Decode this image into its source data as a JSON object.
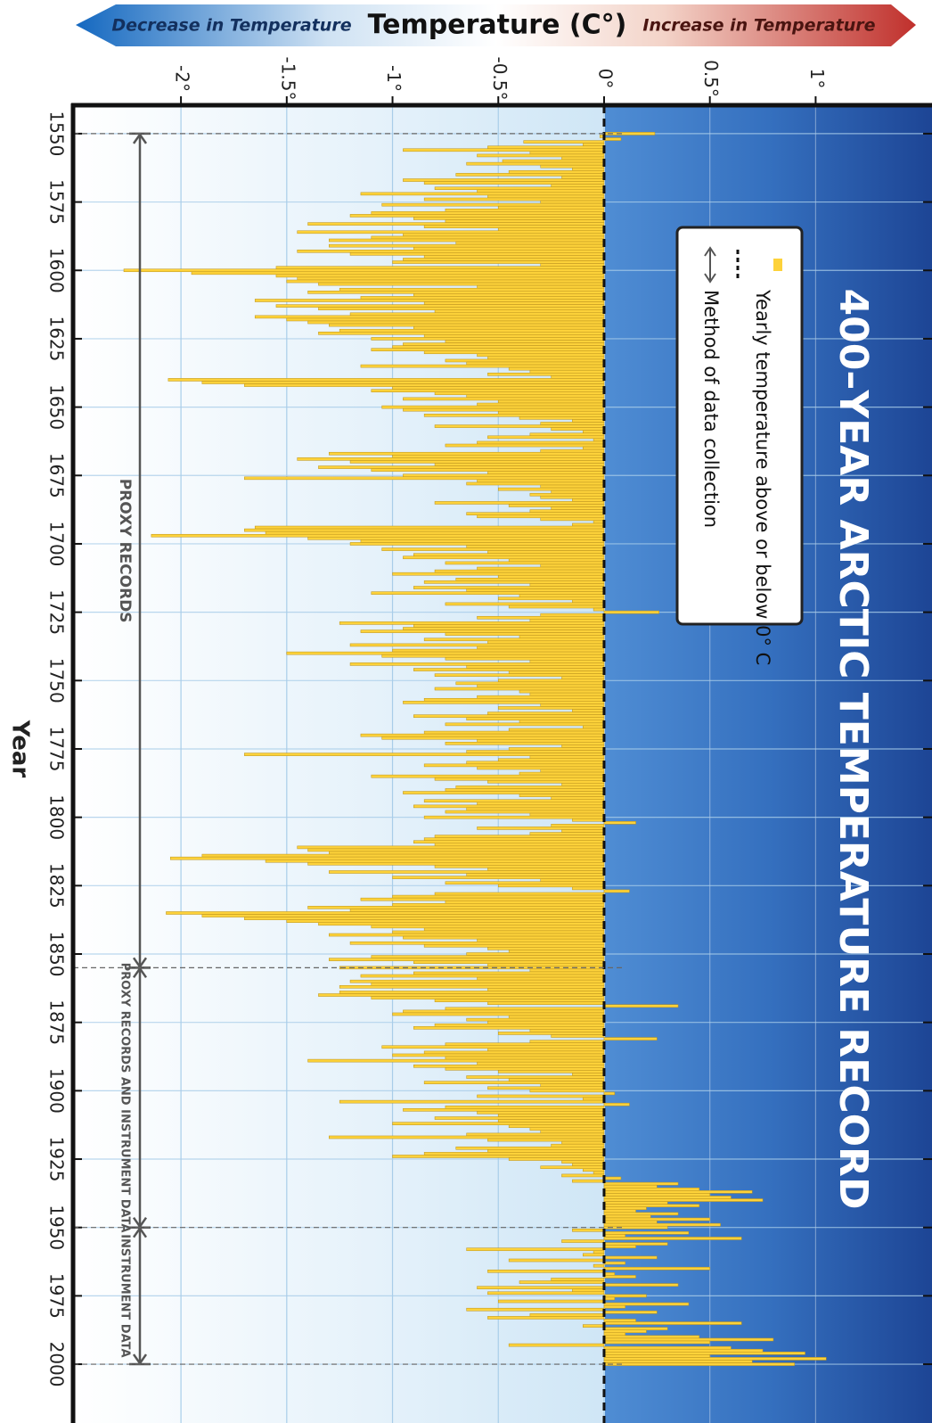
{
  "chart_data": {
    "type": "bar",
    "title": "400–YEAR ARCTIC TEMPERATURE RECORD",
    "value_axis_title": "Temperature (C°)",
    "decrease_label": "Decrease in Temperature",
    "increase_label": "Increase in Temperature",
    "x_label": "Year",
    "xlim": [
      1539.6,
      2021.5
    ],
    "xticks": [
      1550,
      1575,
      1600,
      1625,
      1650,
      1675,
      1700,
      1725,
      1750,
      1775,
      1800,
      1825,
      1850,
      1875,
      1900,
      1925,
      1950,
      1975,
      2000
    ],
    "ylim": [
      -2.51,
      1.55
    ],
    "yticks": [
      {
        "value": -2,
        "label": "-2°"
      },
      {
        "value": -1.5,
        "label": "-1.5°"
      },
      {
        "value": -1,
        "label": "-1°"
      },
      {
        "value": -0.5,
        "label": "-0.5°"
      },
      {
        "value": 0,
        "label": "0°"
      },
      {
        "value": 0.5,
        "label": "0.5°"
      },
      {
        "value": 1,
        "label": "1°"
      }
    ],
    "grid": true,
    "legend_method": "Method of data collection",
    "periods": [
      {
        "label": "PROXY RECORDS",
        "start": 1550,
        "end": 1855
      },
      {
        "label": "PROXY RECORDS AND INSTRUMENT DATA",
        "start": 1855,
        "end": 1950
      },
      {
        "label": "INSTRUMENT DATA",
        "start": 1950,
        "end": 2000
      }
    ],
    "x": [
      1550,
      1551,
      1552,
      1553,
      1554,
      1555,
      1556,
      1557,
      1558,
      1559,
      1560,
      1561,
      1562,
      1563,
      1564,
      1565,
      1566,
      1567,
      1568,
      1569,
      1570,
      1571,
      1572,
      1573,
      1574,
      1575,
      1576,
      1577,
      1578,
      1579,
      1580,
      1581,
      1582,
      1583,
      1584,
      1585,
      1586,
      1587,
      1588,
      1589,
      1590,
      1591,
      1592,
      1593,
      1594,
      1595,
      1596,
      1597,
      1598,
      1599,
      1600,
      1601,
      1602,
      1603,
      1604,
      1605,
      1606,
      1607,
      1608,
      1609,
      1610,
      1611,
      1612,
      1613,
      1614,
      1615,
      1616,
      1617,
      1618,
      1619,
      1620,
      1621,
      1622,
      1623,
      1624,
      1625,
      1626,
      1627,
      1628,
      1629,
      1630,
      1631,
      1632,
      1633,
      1634,
      1635,
      1636,
      1637,
      1638,
      1639,
      1640,
      1641,
      1642,
      1643,
      1644,
      1645,
      1646,
      1647,
      1648,
      1649,
      1650,
      1651,
      1652,
      1653,
      1654,
      1655,
      1656,
      1657,
      1658,
      1659,
      1660,
      1661,
      1662,
      1663,
      1664,
      1665,
      1666,
      1667,
      1668,
      1669,
      1670,
      1671,
      1672,
      1673,
      1674,
      1675,
      1676,
      1677,
      1678,
      1679,
      1680,
      1681,
      1682,
      1683,
      1684,
      1685,
      1686,
      1687,
      1688,
      1689,
      1690,
      1691,
      1692,
      1693,
      1694,
      1695,
      1696,
      1697,
      1698,
      1699,
      1700,
      1701,
      1702,
      1703,
      1704,
      1705,
      1706,
      1707,
      1708,
      1709,
      1710,
      1711,
      1712,
      1713,
      1714,
      1715,
      1716,
      1717,
      1718,
      1719,
      1720,
      1721,
      1722,
      1723,
      1724,
      1725,
      1726,
      1727,
      1728,
      1729,
      1730,
      1731,
      1732,
      1733,
      1734,
      1735,
      1736,
      1737,
      1738,
      1739,
      1740,
      1741,
      1742,
      1743,
      1744,
      1745,
      1746,
      1747,
      1748,
      1749,
      1750,
      1751,
      1752,
      1753,
      1754,
      1755,
      1756,
      1757,
      1758,
      1759,
      1760,
      1761,
      1762,
      1763,
      1764,
      1765,
      1766,
      1767,
      1768,
      1769,
      1770,
      1771,
      1772,
      1773,
      1774,
      1775,
      1776,
      1777,
      1778,
      1779,
      1780,
      1781,
      1782,
      1783,
      1784,
      1785,
      1786,
      1787,
      1788,
      1789,
      1790,
      1791,
      1792,
      1793,
      1794,
      1795,
      1796,
      1797,
      1798,
      1799,
      1800,
      1801,
      1802,
      1803,
      1804,
      1805,
      1806,
      1807,
      1808,
      1809,
      1810,
      1811,
      1812,
      1813,
      1814,
      1815,
      1816,
      1817,
      1818,
      1819,
      1820,
      1821,
      1822,
      1823,
      1824,
      1825,
      1826,
      1827,
      1828,
      1829,
      1830,
      1831,
      1832,
      1833,
      1834,
      1835,
      1836,
      1837,
      1838,
      1839,
      1840,
      1841,
      1842,
      1843,
      1844,
      1845,
      1846,
      1847,
      1848,
      1849,
      1850,
      1851,
      1852,
      1853,
      1854,
      1855,
      1856,
      1857,
      1858,
      1859,
      1860,
      1861,
      1862,
      1863,
      1864,
      1865,
      1866,
      1867,
      1868,
      1869,
      1870,
      1871,
      1872,
      1873,
      1874,
      1875,
      1876,
      1877,
      1878,
      1879,
      1880,
      1881,
      1882,
      1883,
      1884,
      1885,
      1886,
      1887,
      1888,
      1889,
      1890,
      1891,
      1892,
      1893,
      1894,
      1895,
      1896,
      1897,
      1898,
      1899,
      1900,
      1901,
      1902,
      1903,
      1904,
      1905,
      1906,
      1907,
      1908,
      1909,
      1910,
      1911,
      1912,
      1913,
      1914,
      1915,
      1916,
      1917,
      1918,
      1919,
      1920,
      1921,
      1922,
      1923,
      1924,
      1925,
      1926,
      1927,
      1928,
      1929,
      1930,
      1931,
      1932,
      1933,
      1934,
      1935,
      1936,
      1937,
      1938,
      1939,
      1940,
      1941,
      1942,
      1943,
      1944,
      1945,
      1946,
      1947,
      1948,
      1949,
      1950,
      1951,
      1952,
      1953,
      1954,
      1955,
      1956,
      1957,
      1958,
      1959,
      1960,
      1961,
      1962,
      1963,
      1964,
      1965,
      1966,
      1967,
      1968,
      1969,
      1970,
      1971,
      1972,
      1973,
      1974,
      1975,
      1976,
      1977,
      1978,
      1979,
      1980,
      1981,
      1982,
      1983,
      1984,
      1985,
      1986,
      1987,
      1988,
      1989,
      1990,
      1991,
      1992,
      1993,
      1994,
      1995,
      1996,
      1997,
      1998,
      1999,
      2000
    ],
    "series": [
      {
        "name": "Yearly temperature above or below 0° C",
        "color": "#fdd23a",
        "values": [
          0.24,
          -0.02,
          0.08,
          -0.38,
          -0.1,
          -0.55,
          -0.95,
          -0.35,
          -0.6,
          -0.2,
          -0.48,
          -0.65,
          -0.3,
          -0.15,
          -0.45,
          -0.7,
          -0.2,
          -0.95,
          -0.85,
          -0.25,
          -0.8,
          -0.6,
          -1.15,
          -0.55,
          -0.85,
          -0.3,
          -1.05,
          -0.5,
          -0.75,
          -1.1,
          -1.2,
          -0.9,
          -0.75,
          -1.4,
          -0.85,
          -0.5,
          -1.45,
          -0.95,
          -1.1,
          -1.3,
          -0.7,
          -1.3,
          -0.9,
          -1.45,
          -1.2,
          -0.85,
          -0.95,
          -1.0,
          -0.3,
          -1.55,
          -2.27,
          -1.95,
          -1.55,
          -1.45,
          -1.5,
          -1.35,
          -0.6,
          -1.25,
          -1.4,
          -0.9,
          -1.15,
          -1.65,
          -0.85,
          -1.55,
          -1.35,
          -0.8,
          -1.2,
          -1.65,
          -1.5,
          -1.4,
          -1.3,
          -0.9,
          -1.25,
          -1.35,
          -0.85,
          -1.1,
          -0.75,
          -0.95,
          -1.0,
          -1.1,
          -0.85,
          -0.6,
          -0.55,
          -0.75,
          -0.65,
          -1.15,
          -0.45,
          -0.35,
          -0.55,
          -0.25,
          -2.06,
          -1.9,
          -1.7,
          -1.0,
          -1.1,
          -0.8,
          -0.65,
          -0.95,
          -0.5,
          -0.6,
          -1.05,
          -0.95,
          -0.5,
          -0.85,
          -0.4,
          -0.15,
          -0.3,
          -0.8,
          -0.25,
          -0.1,
          -0.35,
          -0.55,
          -0.05,
          -0.6,
          -0.75,
          -0.1,
          -0.3,
          -1.3,
          -1.0,
          -1.45,
          -1.2,
          -0.8,
          -1.35,
          -1.1,
          -0.55,
          -0.95,
          -1.7,
          -0.6,
          -0.65,
          -0.3,
          -0.5,
          -0.25,
          -0.35,
          -0.3,
          -0.15,
          -0.8,
          -0.45,
          -0.25,
          -0.35,
          -0.65,
          -0.6,
          -0.3,
          -0.05,
          -0.15,
          -1.65,
          -1.7,
          -1.6,
          -2.14,
          -1.4,
          -1.15,
          -1.2,
          -0.65,
          -1.05,
          -0.55,
          -0.9,
          -0.95,
          -0.45,
          -0.75,
          -0.3,
          -0.6,
          -0.8,
          -1.0,
          -0.5,
          -0.7,
          -0.85,
          -0.35,
          -0.9,
          -0.65,
          -1.1,
          -0.4,
          -0.5,
          -0.15,
          -0.75,
          -0.45,
          -0.05,
          0.26,
          -0.3,
          -0.6,
          -0.35,
          -1.25,
          -0.9,
          -0.95,
          -1.15,
          -0.75,
          -0.4,
          -0.85,
          -0.55,
          -1.2,
          -0.6,
          -1.0,
          -1.5,
          -1.05,
          -0.75,
          -0.35,
          -1.2,
          -0.65,
          -0.9,
          -0.45,
          -0.8,
          -0.2,
          -0.5,
          -0.7,
          -0.6,
          -0.8,
          -0.4,
          -0.35,
          -0.6,
          -0.85,
          -0.95,
          -0.3,
          -0.5,
          -0.15,
          -0.55,
          -0.9,
          -0.65,
          -0.4,
          -0.75,
          -0.1,
          -0.45,
          -0.85,
          -1.15,
          -1.05,
          -0.6,
          -0.75,
          -0.2,
          -0.45,
          -0.65,
          -1.7,
          -0.35,
          -0.5,
          -0.65,
          -0.85,
          -0.6,
          -0.3,
          -0.4,
          -1.1,
          -0.8,
          -0.55,
          -0.2,
          -0.7,
          -0.75,
          -0.95,
          -0.4,
          -0.25,
          -0.85,
          -0.6,
          -0.9,
          -0.65,
          -0.75,
          -0.35,
          -0.85,
          -0.15,
          0.15,
          -0.25,
          -0.6,
          -0.2,
          -0.35,
          -0.8,
          -0.85,
          -0.9,
          -0.8,
          -1.45,
          -1.4,
          -1.3,
          -1.9,
          -2.05,
          -1.6,
          -1.4,
          -0.8,
          -0.55,
          -1.3,
          -0.65,
          -1.0,
          -0.3,
          -0.75,
          -0.5,
          -0.15,
          0.12,
          -0.8,
          -1.0,
          -1.15,
          -0.75,
          -1.0,
          -1.4,
          -1.2,
          -2.07,
          -1.9,
          -1.7,
          -1.5,
          -1.35,
          -1.1,
          -0.85,
          -1.0,
          -1.3,
          -0.95,
          -0.6,
          -1.2,
          -0.85,
          -0.55,
          -0.45,
          -0.65,
          -1.1,
          -1.3,
          -0.9,
          -0.55,
          -1.25,
          -0.35,
          -0.9,
          -1.15,
          -0.6,
          -1.2,
          -1.1,
          -1.25,
          -0.55,
          -1.25,
          -1.35,
          -1.1,
          -0.8,
          -0.55,
          0.35,
          -0.75,
          -0.95,
          -1.0,
          -0.45,
          -0.65,
          -0.55,
          -0.8,
          -0.9,
          -0.35,
          -0.5,
          -0.25,
          0.25,
          -0.35,
          -0.75,
          -1.05,
          -0.55,
          -0.85,
          -1.0,
          -0.75,
          -1.4,
          -0.6,
          -0.9,
          -0.75,
          -0.5,
          -0.15,
          -0.65,
          -0.45,
          -0.85,
          -0.3,
          -0.55,
          -0.35,
          0.05,
          -0.6,
          -0.1,
          -1.25,
          0.12,
          -0.75,
          -0.95,
          -0.6,
          -0.5,
          -0.8,
          -0.5,
          -1.0,
          -0.45,
          -0.35,
          -0.3,
          -0.65,
          -1.3,
          -0.55,
          -0.2,
          -0.25,
          -0.7,
          -0.55,
          -0.85,
          -1.0,
          -0.45,
          -0.2,
          -0.15,
          -0.3,
          -0.1,
          -0.05,
          -0.2,
          0.08,
          -0.15,
          0.35,
          0.25,
          0.45,
          0.7,
          0.5,
          0.6,
          0.75,
          0.3,
          0.45,
          0.2,
          0.15,
          0.35,
          0.22,
          0.5,
          0.25,
          0.55,
          0.3,
          -0.15,
          0.4,
          0.1,
          0.65,
          -0.2,
          0.3,
          0.15,
          -0.65,
          -0.05,
          -0.1,
          0.25,
          -0.45,
          0.1,
          -0.05,
          0.5,
          -0.55,
          0.05,
          0.15,
          -0.25,
          -0.4,
          0.35,
          -0.6,
          -0.15,
          -0.55,
          0.2,
          0.05,
          -0.5,
          0.4,
          0.1,
          -0.65,
          0.25,
          -0.35,
          -0.55,
          0.15,
          0.65,
          -0.1,
          0.3,
          0.2,
          0.1,
          0.45,
          0.8,
          0.5,
          -0.45,
          0.6,
          0.75,
          0.95,
          0.5,
          1.05,
          0.7,
          0.9
        ]
      }
    ]
  }
}
